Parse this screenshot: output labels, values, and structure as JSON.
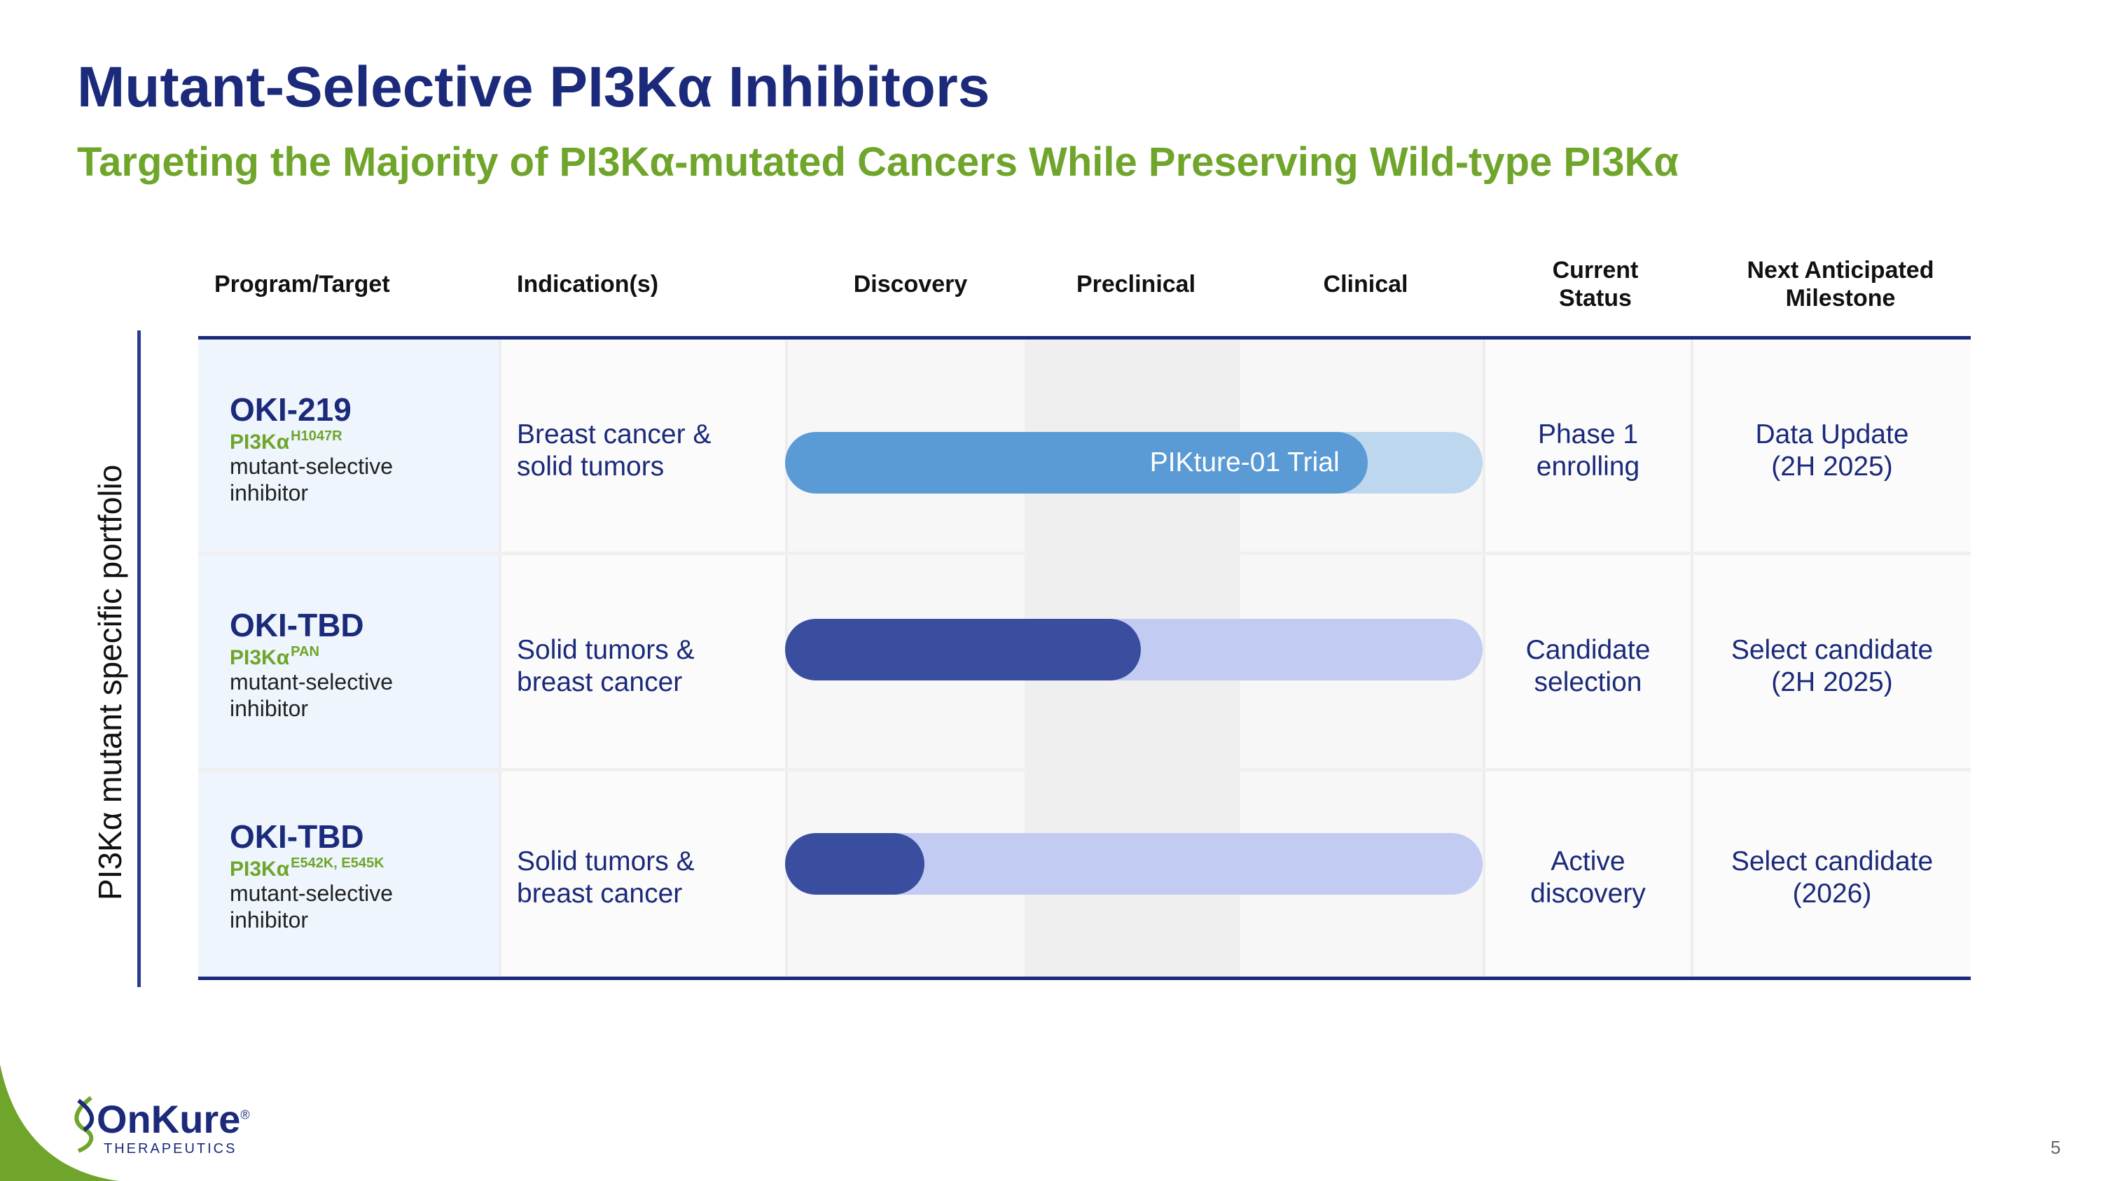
{
  "title": "Mutant-Selective PI3Kα Inhibitors",
  "subtitle": "Targeting the Majority of PI3Kα-mutated Cancers While Preserving Wild-type PI3Kα",
  "side_label": "PI3Kα mutant specific portfolio",
  "headers": {
    "program": "Program/Target",
    "indication": "Indication(s)",
    "discovery": "Discovery",
    "preclinical": "Preclinical",
    "clinical": "Clinical",
    "status_line1": "Current",
    "status_line2": "Status",
    "milestone_line1": "Next Anticipated",
    "milestone_line2": "Milestone"
  },
  "programs": [
    {
      "name": "OKI-219",
      "target": "PI3Kα",
      "mutation": "H1047R",
      "desc_line1": "mutant-selective",
      "desc_line2": "inhibitor",
      "ind_line1": "Breast cancer &",
      "ind_line2": "solid tumors",
      "progress_label": "PIKture-01 Trial",
      "progress_fraction": 0.835,
      "status_line1": "Phase 1",
      "status_line2": "enrolling",
      "milestone_line1": "Data Update",
      "milestone_line2": "(2H 2025)"
    },
    {
      "name": "OKI-TBD",
      "target": "PI3Kα",
      "mutation": "PAN",
      "desc_line1": "mutant-selective",
      "desc_line2": "inhibitor",
      "ind_line1": "Solid tumors &",
      "ind_line2": "breast cancer",
      "progress_fraction": 0.51,
      "status_line1": "Candidate",
      "status_line2": "selection",
      "milestone_line1": "Select candidate",
      "milestone_line2": "(2H 2025)"
    },
    {
      "name": "OKI-TBD",
      "target": "PI3Kα",
      "mutation": "E542K, E545K",
      "desc_line1": "mutant-selective",
      "desc_line2": "inhibitor",
      "ind_line1": "Solid tumors &",
      "ind_line2": "breast cancer",
      "progress_fraction": 0.2,
      "status_line1": "Active",
      "status_line2": "discovery",
      "milestone_line1": "Select candidate",
      "milestone_line2": "(2026)"
    }
  ],
  "logo": {
    "word_on": "On",
    "word_kure": "Kure",
    "reg": "®",
    "sub": "THERAPEUTICS"
  },
  "page_number": "5",
  "colors": {
    "navy": "#1b2a7a",
    "green": "#6ea52a",
    "trial_fill": "#5b9bd5",
    "trial_track": "#bdd7ee",
    "stage_fill": "#3a4ea0",
    "stage_track": "#c2cbf2"
  }
}
